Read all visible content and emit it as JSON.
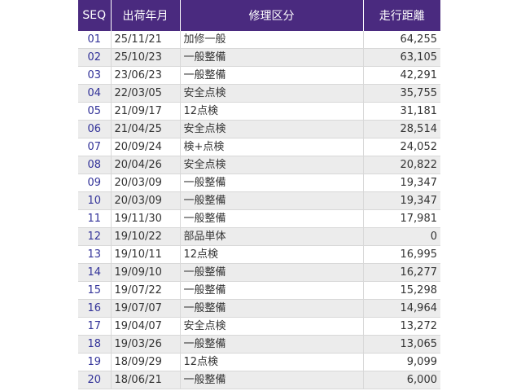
{
  "header": {
    "seq": "SEQ",
    "date": "出荷年月",
    "type": "修理区分",
    "km": "走行距離"
  },
  "rows": [
    {
      "seq": "01",
      "date": "25/11/21",
      "type": "加修一般",
      "km": "64,255"
    },
    {
      "seq": "02",
      "date": "25/10/23",
      "type": "一般整備",
      "km": "63,105"
    },
    {
      "seq": "03",
      "date": "23/06/23",
      "type": "一般整備",
      "km": "42,291"
    },
    {
      "seq": "04",
      "date": "22/03/05",
      "type": "安全点検",
      "km": "35,755"
    },
    {
      "seq": "05",
      "date": "21/09/17",
      "type": "12点検",
      "km": "31,181"
    },
    {
      "seq": "06",
      "date": "21/04/25",
      "type": "安全点検",
      "km": "28,514"
    },
    {
      "seq": "07",
      "date": "20/09/24",
      "type": "検+点検",
      "km": "24,052"
    },
    {
      "seq": "08",
      "date": "20/04/26",
      "type": "安全点検",
      "km": "20,822"
    },
    {
      "seq": "09",
      "date": "20/03/09",
      "type": "一般整備",
      "km": "19,347"
    },
    {
      "seq": "10",
      "date": "20/03/09",
      "type": "一般整備",
      "km": "19,347"
    },
    {
      "seq": "11",
      "date": "19/11/30",
      "type": "一般整備",
      "km": "17,981"
    },
    {
      "seq": "12",
      "date": "19/10/22",
      "type": "部品単体",
      "km": "0"
    },
    {
      "seq": "13",
      "date": "19/10/11",
      "type": "12点検",
      "km": "16,995"
    },
    {
      "seq": "14",
      "date": "19/09/10",
      "type": "一般整備",
      "km": "16,277"
    },
    {
      "seq": "15",
      "date": "19/07/22",
      "type": "一般整備",
      "km": "15,298"
    },
    {
      "seq": "16",
      "date": "19/07/07",
      "type": "一般整備",
      "km": "14,964"
    },
    {
      "seq": "17",
      "date": "19/04/07",
      "type": "安全点検",
      "km": "13,272"
    },
    {
      "seq": "18",
      "date": "19/03/26",
      "type": "一般整備",
      "km": "13,065"
    },
    {
      "seq": "19",
      "date": "18/09/29",
      "type": "12点検",
      "km": "9,099"
    },
    {
      "seq": "20",
      "date": "18/06/21",
      "type": "一般整備",
      "km": "6,000"
    }
  ]
}
